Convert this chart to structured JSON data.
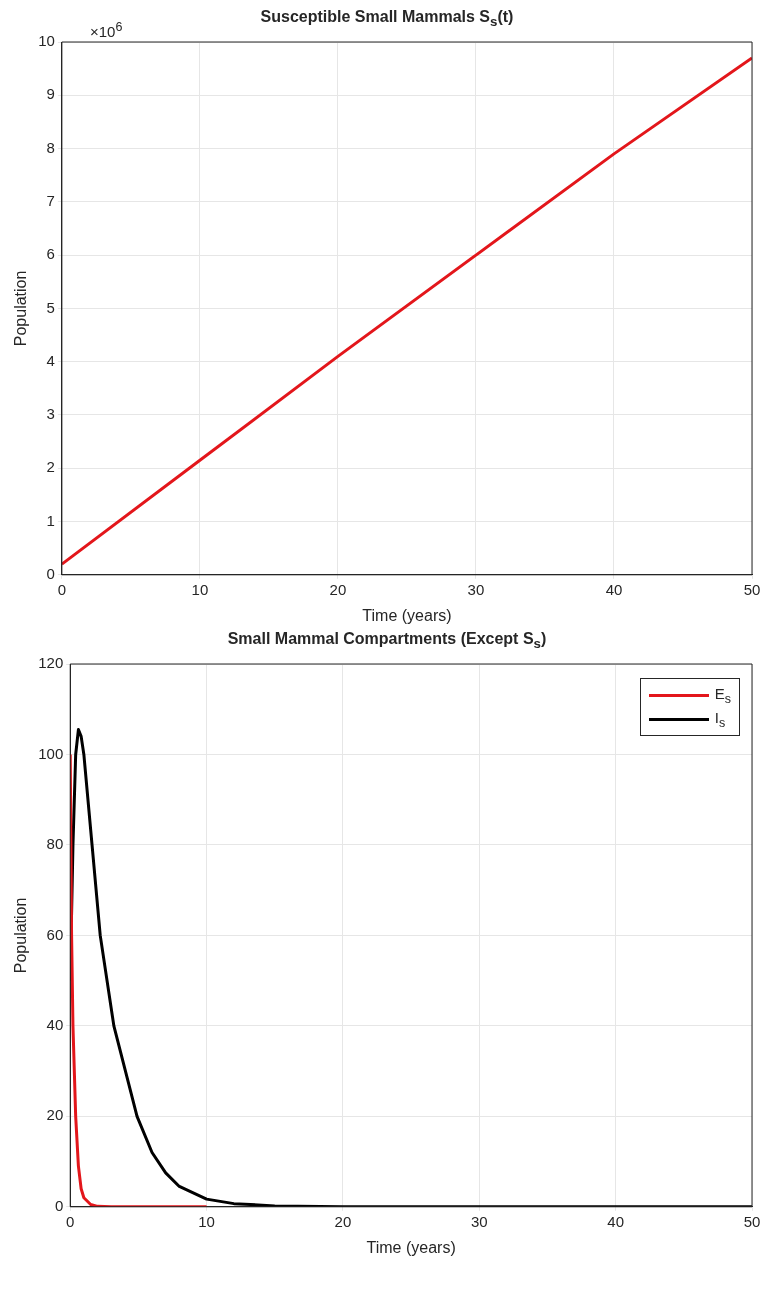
{
  "chart_data": [
    {
      "type": "line",
      "title": "Susceptible Small Mammals  S$_{s}$(t)",
      "xlabel": "Time (years)",
      "ylabel": "Population",
      "annotations": [
        "×10$^{6}$"
      ],
      "xlim": [
        0,
        50
      ],
      "xticks": [
        0,
        10,
        20,
        30,
        40,
        50
      ],
      "ylim": [
        0,
        10
      ],
      "yticks": [
        0,
        1,
        2,
        3,
        4,
        5,
        6,
        7,
        8,
        9,
        10
      ],
      "grid": true,
      "legend": false,
      "series": [
        {
          "color": "#e3161b",
          "x": [
            0,
            10,
            20,
            30,
            40,
            50
          ],
          "values": [
            0.2,
            2.15,
            4.1,
            6.0,
            7.9,
            9.7
          ]
        }
      ]
    },
    {
      "type": "line",
      "title": "Small Mammal Compartments (Except S$_{s}$)",
      "xlabel": "Time (years)",
      "ylabel": "Population",
      "xlim": [
        0,
        50
      ],
      "xticks": [
        0,
        10,
        20,
        30,
        40,
        50
      ],
      "ylim": [
        0,
        120
      ],
      "yticks": [
        0,
        20,
        40,
        60,
        80,
        100,
        120
      ],
      "grid": true,
      "legend": "top right",
      "series": [
        {
          "name": "E$_{s}$",
          "color": "#e3161b",
          "x": [
            0,
            0.1,
            0.2,
            0.4,
            0.6,
            0.8,
            1,
            1.5,
            2,
            3,
            10
          ],
          "values": [
            100,
            60,
            40,
            20,
            9,
            4,
            2,
            0.5,
            0.1,
            0,
            0
          ]
        },
        {
          "name": "I$_{s}$",
          "color": "#000000",
          "x": [
            0,
            0.2,
            0.4,
            0.6,
            0.8,
            1,
            1.6,
            2.2,
            3.2,
            4.9,
            6,
            7,
            8,
            10,
            12,
            15,
            20,
            30,
            50
          ],
          "values": [
            50,
            80,
            100,
            105.5,
            104,
            100,
            80,
            60,
            40,
            20,
            12,
            7.5,
            4.5,
            1.7,
            0.7,
            0.2,
            0,
            0,
            0
          ]
        }
      ]
    }
  ]
}
